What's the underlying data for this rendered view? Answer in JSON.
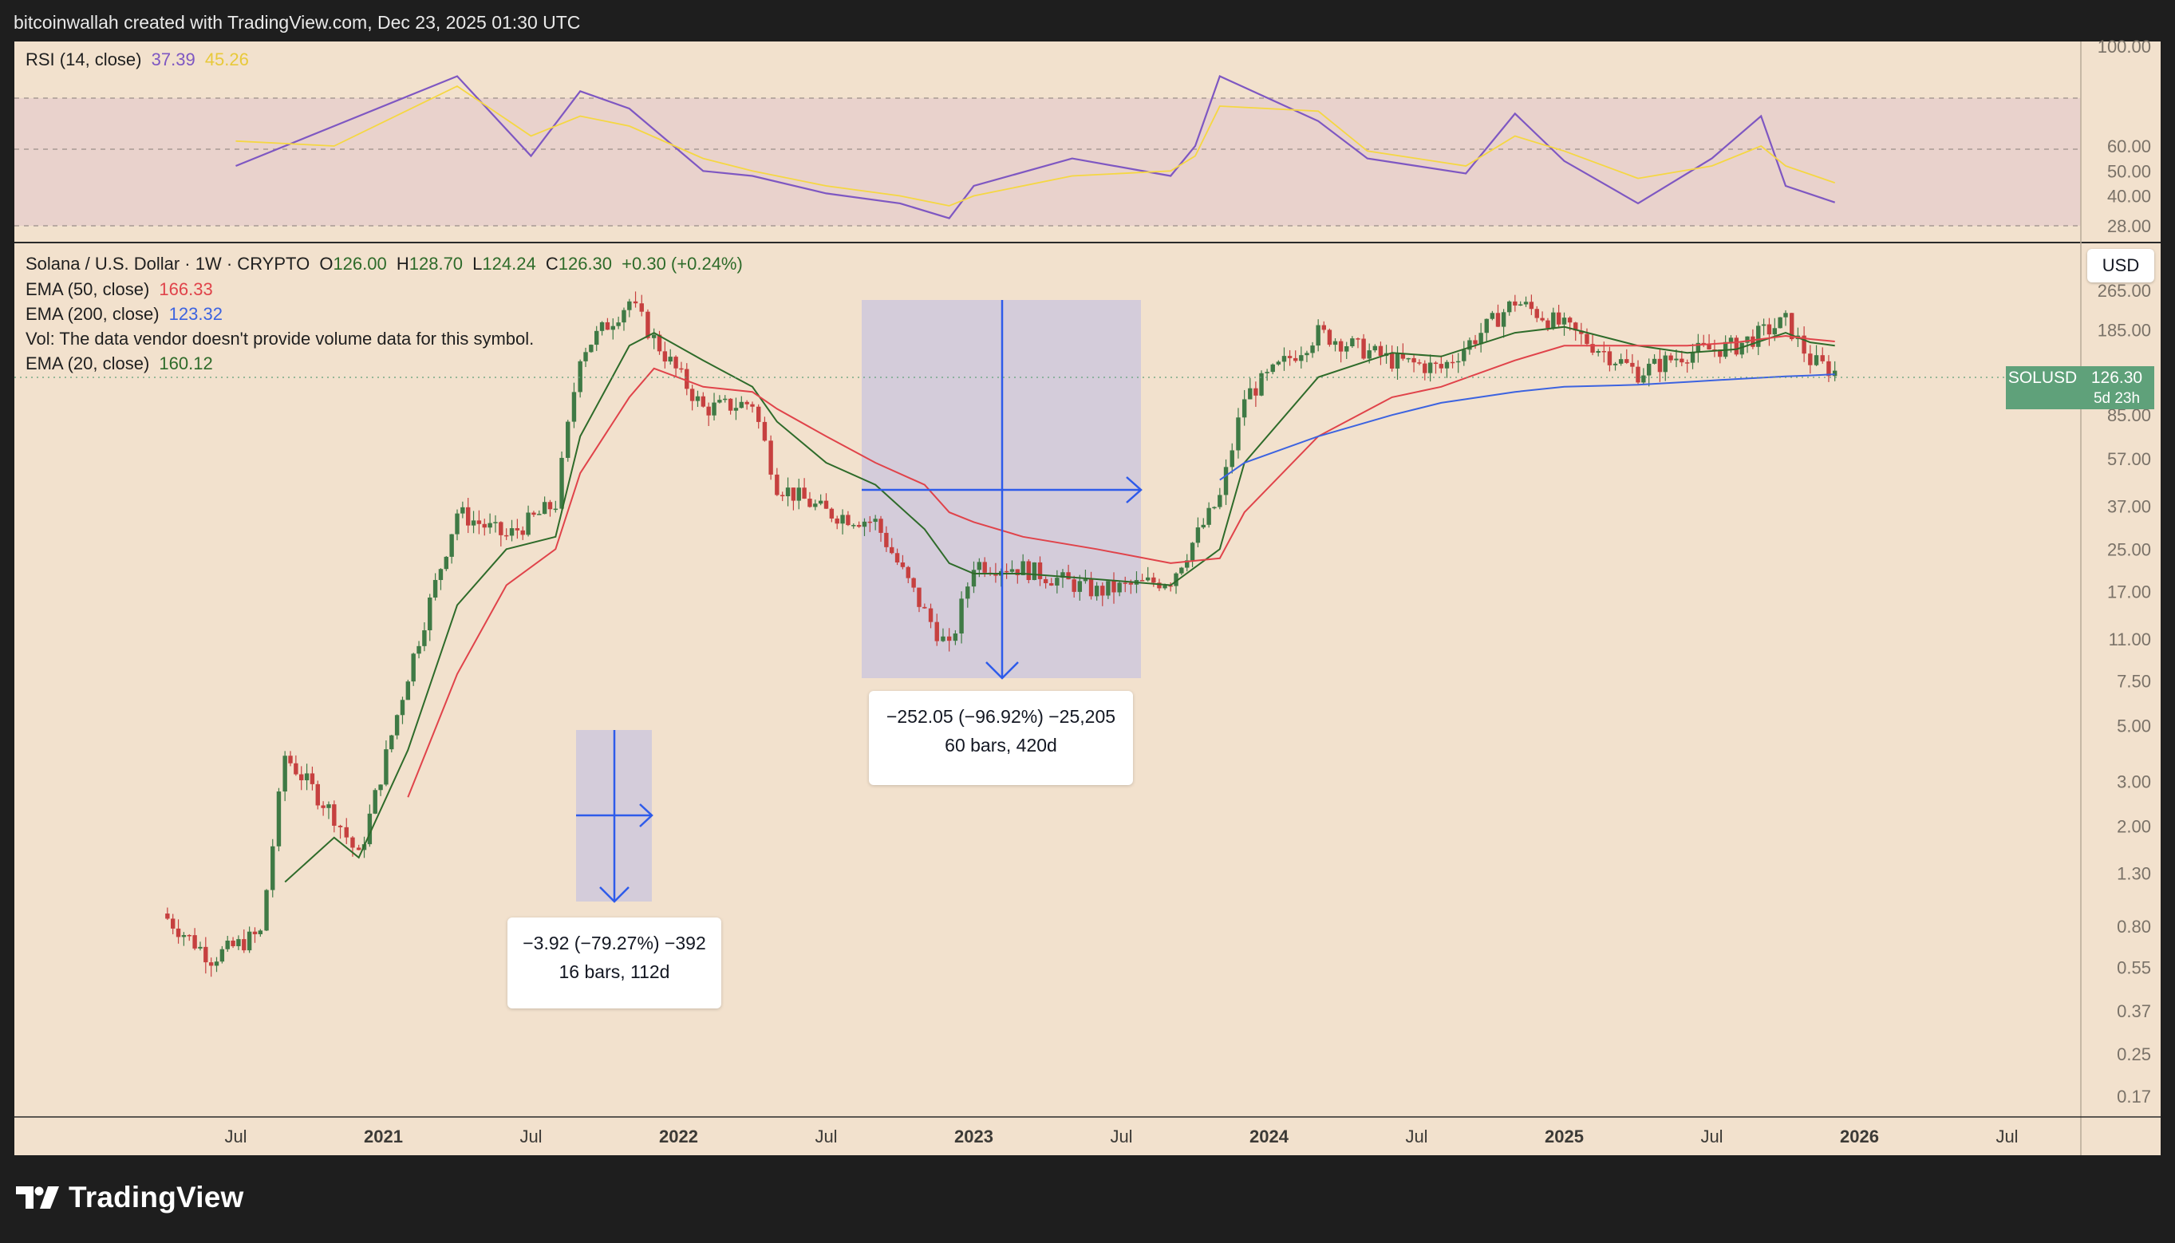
{
  "header": {
    "attribution": "bitcoinwallah created with TradingView.com, Dec 23, 2025 01:30 UTC"
  },
  "rsi": {
    "title": "RSI (14, close)",
    "value": "37.39",
    "ma_value": "45.26",
    "colors": {
      "rsi": "#7e57c2",
      "ma": "#f5d742",
      "band": "#e9d2cc"
    },
    "ticks": [
      "100.00",
      "60.00",
      "50.00",
      "40.00",
      "28.00"
    ]
  },
  "legend": {
    "symbol_line": "Solana / U.S. Dollar · 1W · CRYPTO",
    "open_label": "O",
    "open": "126.00",
    "high_label": "H",
    "high": "128.70",
    "low_label": "L",
    "low": "124.24",
    "close_label": "C",
    "close": "126.30",
    "change": "+0.30 (+0.24%)",
    "ema50_label": "EMA (50, close)",
    "ema50_value": "166.33",
    "ema200_label": "EMA (200, close)",
    "ema200_value": "123.32",
    "vol_note": "Vol: The data vendor doesn't provide volume data for this symbol.",
    "ema20_label": "EMA (20, close)",
    "ema20_value": "160.12"
  },
  "currency_button": "USD",
  "price_label": {
    "symbol": "SOLUSD",
    "price": "126.30",
    "countdown": "5d 23h"
  },
  "measure_large": {
    "line1": "−252.05 (−96.92%) −25,205",
    "line2": "60 bars, 420d"
  },
  "measure_small": {
    "line1": "−3.92 (−79.27%) −392",
    "line2": "16 bars, 112d"
  },
  "footer": {
    "brand": "TradingView"
  },
  "colors": {
    "bull": "#3f7a45",
    "bear": "#c6403f",
    "ema20": "#2e6b2a",
    "ema50": "#e0434a",
    "ema200": "#3c63e0",
    "measure": "#2e5bea",
    "background": "#f2e1cd"
  },
  "chart_data": [
    {
      "type": "line",
      "title": "RSI (14, close)",
      "ylim": [
        28,
        100
      ],
      "y_ticks": [
        100,
        60,
        50,
        40,
        28
      ],
      "x": [
        "2020-07",
        "2020-11",
        "2021-04",
        "2021-07",
        "2021-09",
        "2021-11",
        "2022-02",
        "2022-04",
        "2022-07",
        "2022-10",
        "2022-12",
        "2023-01",
        "2023-05",
        "2023-09",
        "2023-10",
        "2023-11",
        "2024-03",
        "2024-05",
        "2024-07",
        "2024-09",
        "2024-11",
        "2025-01",
        "2025-04",
        "2025-07",
        "2025-09",
        "2025-10",
        "2025-12"
      ],
      "series": [
        {
          "name": "RSI",
          "values": [
            52,
            68,
            88,
            56,
            82,
            75,
            50,
            48,
            41,
            37,
            31,
            44,
            55,
            48,
            60,
            88,
            70,
            55,
            52,
            49,
            73,
            54,
            37,
            55,
            72,
            44,
            37.39
          ]
        },
        {
          "name": "RSI MA",
          "values": [
            62,
            60,
            84,
            64,
            72,
            68,
            55,
            50,
            44,
            40,
            36,
            40,
            48,
            50,
            56,
            76,
            74,
            58,
            55,
            52,
            64,
            58,
            47,
            52,
            60,
            52,
            45.26
          ]
        }
      ]
    },
    {
      "type": "candlestick",
      "title": "Solana / U.S. Dollar · 1W · CRYPTO",
      "y_scale": "log",
      "y_ticks": [
        0.17,
        0.25,
        0.37,
        0.55,
        0.8,
        1.3,
        2.0,
        3.0,
        5.0,
        7.5,
        11.0,
        17.0,
        25.0,
        37.0,
        57.0,
        85.0,
        126.3,
        185.0,
        265.0
      ],
      "x_ticks": [
        "Jul",
        "2021",
        "Jul",
        "2022",
        "Jul",
        "2023",
        "Jul",
        "2024",
        "Jul",
        "2025",
        "Jul",
        "2026",
        "Jul"
      ],
      "x": [
        "2020-04",
        "2020-06",
        "2020-08",
        "2020-09",
        "2020-11",
        "2020-12",
        "2021-02",
        "2021-04",
        "2021-06",
        "2021-08",
        "2021-09",
        "2021-11",
        "2021-12",
        "2022-02",
        "2022-04",
        "2022-05",
        "2022-07",
        "2022-09",
        "2022-11",
        "2022-12",
        "2023-01",
        "2023-03",
        "2023-06",
        "2023-09",
        "2023-11",
        "2023-12",
        "2024-03",
        "2024-06",
        "2024-08",
        "2024-11",
        "2025-01",
        "2025-04",
        "2025-06",
        "2025-08",
        "2025-10",
        "2025-11",
        "2025-12"
      ],
      "series": [
        {
          "name": "Close",
          "values": [
            0.9,
            0.6,
            0.75,
            3.8,
            2.2,
            1.5,
            8,
            35,
            28,
            38,
            150,
            240,
            170,
            90,
            95,
            45,
            35,
            32,
            14,
            10,
            22,
            21,
            17,
            19,
            40,
            100,
            180,
            140,
            130,
            240,
            190,
            125,
            150,
            160,
            200,
            140,
            126.3
          ]
        },
        {
          "name": "EMA (20, close)",
          "values": [
            null,
            null,
            null,
            1.2,
            1.8,
            1.5,
            4,
            15,
            25,
            28,
            70,
            160,
            180,
            140,
            110,
            80,
            55,
            45,
            30,
            22,
            20,
            20,
            19,
            18,
            25,
            55,
            120,
            150,
            145,
            180,
            190,
            160,
            150,
            155,
            180,
            165,
            160.12
          ]
        },
        {
          "name": "EMA (50, close)",
          "values": [
            null,
            null,
            null,
            null,
            null,
            null,
            2.6,
            8,
            18,
            25,
            50,
            100,
            130,
            110,
            105,
            90,
            70,
            55,
            45,
            35,
            32,
            28,
            25,
            22,
            23,
            35,
            70,
            100,
            110,
            140,
            160,
            160,
            160,
            165,
            175,
            170,
            166.33
          ]
        },
        {
          "name": "EMA (200, close)",
          "values": [
            null,
            null,
            null,
            null,
            null,
            null,
            null,
            null,
            null,
            null,
            null,
            null,
            null,
            null,
            null,
            null,
            null,
            null,
            null,
            null,
            null,
            null,
            null,
            null,
            47,
            55,
            70,
            85,
            95,
            105,
            110,
            112,
            115,
            118,
            121,
            122,
            123.32
          ]
        }
      ]
    }
  ]
}
